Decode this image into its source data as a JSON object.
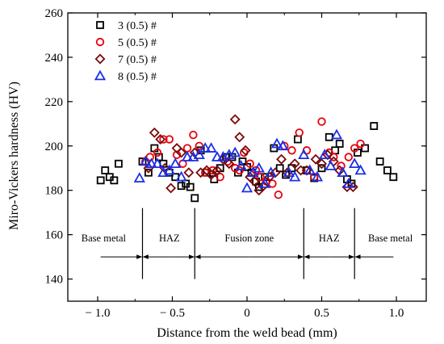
{
  "chart_data": {
    "type": "scatter",
    "title": "",
    "xlabel": "Distance from the weld bead (mm)",
    "ylabel": "Miro-Vickers hardness (HV)",
    "xlim": [
      -1.2,
      1.2
    ],
    "ylim": [
      130,
      260
    ],
    "xticks": [
      -1.0,
      -0.5,
      0,
      0.5,
      1.0
    ],
    "xtick_labels": [
      "− 1.0",
      "− 0.5",
      "0",
      "0.5",
      "1.0"
    ],
    "yticks": [
      140,
      160,
      180,
      200,
      220,
      240,
      260
    ],
    "ytick_labels": [
      "140",
      "160",
      "180",
      "200",
      "220",
      "240",
      "260"
    ],
    "grid": false,
    "legend_position": "top-left",
    "series": [
      {
        "name": "3 (0.5) #",
        "marker": "square",
        "color": "#000000",
        "points": [
          [
            -0.98,
            184.5
          ],
          [
            -0.95,
            189
          ],
          [
            -0.92,
            186
          ],
          [
            -0.89,
            184.5
          ],
          [
            -0.86,
            192
          ],
          [
            -0.7,
            193
          ],
          [
            -0.66,
            188
          ],
          [
            -0.62,
            199
          ],
          [
            -0.59,
            195
          ],
          [
            -0.56,
            192
          ],
          [
            -0.52,
            188
          ],
          [
            -0.48,
            186
          ],
          [
            -0.44,
            182
          ],
          [
            -0.41,
            183
          ],
          [
            -0.38,
            181.5
          ],
          [
            -0.35,
            176.5
          ],
          [
            -0.31,
            198
          ],
          [
            -0.27,
            188
          ],
          [
            -0.22,
            185
          ],
          [
            -0.18,
            190
          ],
          [
            -0.14,
            195
          ],
          [
            -0.1,
            195
          ],
          [
            -0.06,
            188
          ],
          [
            -0.03,
            193
          ],
          [
            0.0,
            190.5
          ],
          [
            0.03,
            188
          ],
          [
            0.06,
            184
          ],
          [
            0.08,
            181.5
          ],
          [
            0.12,
            186
          ],
          [
            0.18,
            199
          ],
          [
            0.22,
            190
          ],
          [
            0.26,
            187
          ],
          [
            0.3,
            190
          ],
          [
            0.34,
            203
          ],
          [
            0.4,
            189
          ],
          [
            0.45,
            185.5
          ],
          [
            0.5,
            190
          ],
          [
            0.55,
            204
          ],
          [
            0.59,
            198
          ],
          [
            0.62,
            201
          ],
          [
            0.67,
            185
          ],
          [
            0.7,
            183
          ],
          [
            0.74,
            197
          ],
          [
            0.79,
            199
          ],
          [
            0.85,
            209
          ],
          [
            0.89,
            193
          ],
          [
            0.94,
            189
          ],
          [
            0.98,
            186
          ]
        ]
      },
      {
        "name": "5 (0.5) #",
        "marker": "circle",
        "color": "#e8000b",
        "points": [
          [
            -0.68,
            193
          ],
          [
            -0.65,
            195
          ],
          [
            -0.6,
            197
          ],
          [
            -0.56,
            203
          ],
          [
            -0.52,
            203
          ],
          [
            -0.47,
            196
          ],
          [
            -0.43,
            192
          ],
          [
            -0.4,
            199
          ],
          [
            -0.36,
            205
          ],
          [
            -0.32,
            200
          ],
          [
            -0.28,
            188
          ],
          [
            -0.23,
            189
          ],
          [
            -0.18,
            186
          ],
          [
            -0.13,
            193
          ],
          [
            -0.08,
            190
          ],
          [
            -0.05,
            189
          ],
          [
            -0.02,
            197
          ],
          [
            0.02,
            192
          ],
          [
            0.06,
            189
          ],
          [
            0.09,
            186
          ],
          [
            0.13,
            184
          ],
          [
            0.17,
            183
          ],
          [
            0.21,
            178
          ],
          [
            0.25,
            200
          ],
          [
            0.3,
            198
          ],
          [
            0.35,
            206
          ],
          [
            0.4,
            198
          ],
          [
            0.45,
            186
          ],
          [
            0.5,
            211
          ],
          [
            0.55,
            197
          ],
          [
            0.58,
            195
          ],
          [
            0.63,
            191
          ],
          [
            0.68,
            195
          ],
          [
            0.72,
            199
          ],
          [
            0.76,
            201
          ]
        ]
      },
      {
        "name": "7 (0.5) #",
        "marker": "diamond",
        "color": "#7a0a0a",
        "points": [
          [
            -0.66,
            190
          ],
          [
            -0.62,
            206
          ],
          [
            -0.58,
            203
          ],
          [
            -0.55,
            190
          ],
          [
            -0.51,
            181
          ],
          [
            -0.47,
            199
          ],
          [
            -0.44,
            197
          ],
          [
            -0.39,
            188
          ],
          [
            -0.35,
            197
          ],
          [
            -0.31,
            188
          ],
          [
            -0.27,
            189
          ],
          [
            -0.24,
            187
          ],
          [
            -0.2,
            189
          ],
          [
            -0.16,
            194
          ],
          [
            -0.12,
            192
          ],
          [
            -0.08,
            212
          ],
          [
            -0.05,
            204
          ],
          [
            -0.01,
            198
          ],
          [
            0.02,
            186
          ],
          [
            0.05,
            184
          ],
          [
            0.08,
            180
          ],
          [
            0.11,
            182
          ],
          [
            0.15,
            186
          ],
          [
            0.19,
            188
          ],
          [
            0.23,
            194
          ],
          [
            0.27,
            188
          ],
          [
            0.32,
            192
          ],
          [
            0.36,
            189
          ],
          [
            0.4,
            189
          ],
          [
            0.46,
            194
          ],
          [
            0.5,
            192
          ],
          [
            0.54,
            196
          ],
          [
            0.58,
            193
          ],
          [
            0.62,
            189
          ],
          [
            0.67,
            181.5
          ],
          [
            0.71,
            181.5
          ]
        ]
      },
      {
        "name": "8 (0.5) #",
        "marker": "triangle",
        "color": "#1a2fe6",
        "points": [
          [
            -0.72,
            185.5
          ],
          [
            -0.68,
            193
          ],
          [
            -0.64,
            192
          ],
          [
            -0.6,
            192
          ],
          [
            -0.56,
            188
          ],
          [
            -0.52,
            189
          ],
          [
            -0.48,
            192
          ],
          [
            -0.44,
            186
          ],
          [
            -0.4,
            195
          ],
          [
            -0.36,
            195
          ],
          [
            -0.32,
            196
          ],
          [
            -0.28,
            199
          ],
          [
            -0.24,
            199
          ],
          [
            -0.2,
            195
          ],
          [
            -0.16,
            195
          ],
          [
            -0.12,
            196
          ],
          [
            -0.08,
            197
          ],
          [
            -0.04,
            191
          ],
          [
            0.0,
            181
          ],
          [
            0.04,
            188
          ],
          [
            0.08,
            190
          ],
          [
            0.12,
            183
          ],
          [
            0.16,
            188
          ],
          [
            0.2,
            201
          ],
          [
            0.24,
            200
          ],
          [
            0.28,
            188
          ],
          [
            0.32,
            186
          ],
          [
            0.38,
            196
          ],
          [
            0.42,
            189
          ],
          [
            0.47,
            186
          ],
          [
            0.52,
            196
          ],
          [
            0.56,
            191
          ],
          [
            0.6,
            205
          ],
          [
            0.64,
            188
          ],
          [
            0.68,
            183
          ],
          [
            0.72,
            192
          ],
          [
            0.76,
            189
          ]
        ]
      }
    ],
    "zone_boundaries": [
      -0.7,
      -0.35,
      0.38,
      0.72
    ],
    "zone_arrow_y": 150,
    "zone_boundary_range": [
      140,
      172
    ],
    "zones": [
      {
        "label": "Base metal",
        "center": -0.96,
        "arrow_from": -0.98,
        "arrow_to": -0.7
      },
      {
        "label": "HAZ",
        "center": -0.52
      },
      {
        "label": "Fusion zone",
        "center": 0.015
      },
      {
        "label": "HAZ",
        "center": 0.55
      },
      {
        "label": "Base metal",
        "center": 0.96,
        "arrow_from": 0.72,
        "arrow_to": 0.98
      }
    ]
  }
}
